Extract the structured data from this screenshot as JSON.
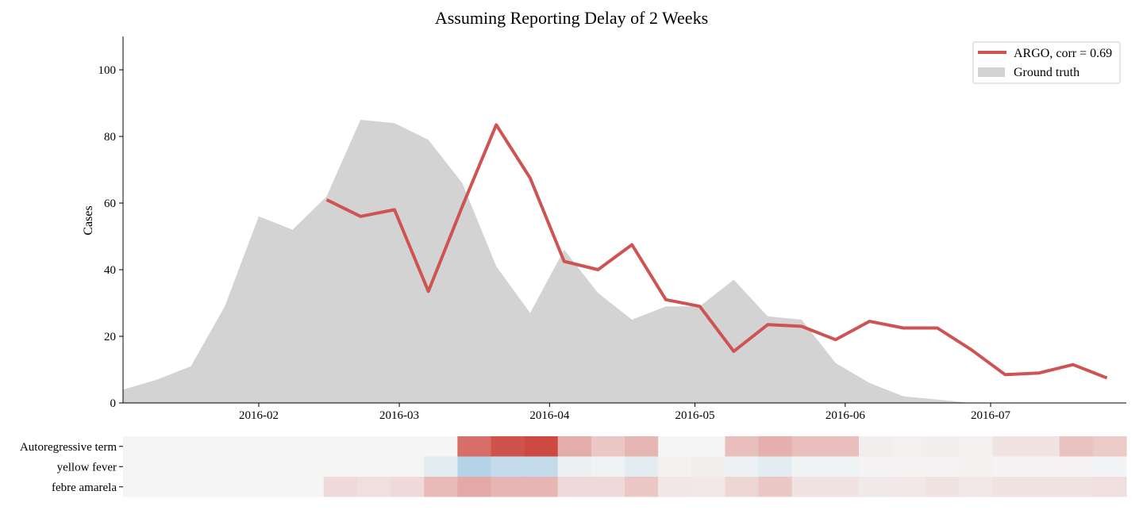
{
  "chart_data": [
    {
      "type": "line+area",
      "title": "Assuming Reporting Delay of 2 Weeks",
      "xlabel": "",
      "ylabel": "Cases",
      "ylim": [
        0,
        110
      ],
      "y_ticks": [
        0,
        20,
        40,
        60,
        80,
        100
      ],
      "x_range": [
        "2016-01-04",
        "2016-07-29"
      ],
      "x_ticks": [
        "2016-02",
        "2016-03",
        "2016-04",
        "2016-05",
        "2016-06",
        "2016-07"
      ],
      "grid": false,
      "legend_position": "top-right",
      "legend": [
        "ARGO, corr = 0.69",
        "Ground truth"
      ],
      "colors": {
        "argo": "#cd5452",
        "ground_truth": "#d3d3d3"
      },
      "series": [
        {
          "name": "Ground truth",
          "kind": "area",
          "x": [
            "2016-01-04",
            "2016-01-11",
            "2016-01-18",
            "2016-01-25",
            "2016-02-01",
            "2016-02-08",
            "2016-02-15",
            "2016-02-22",
            "2016-02-29",
            "2016-03-07",
            "2016-03-14",
            "2016-03-21",
            "2016-03-28",
            "2016-04-04",
            "2016-04-11",
            "2016-04-18",
            "2016-04-25",
            "2016-05-02",
            "2016-05-09",
            "2016-05-16",
            "2016-05-23",
            "2016-05-30",
            "2016-06-06",
            "2016-06-13",
            "2016-06-20",
            "2016-06-27",
            "2016-07-04",
            "2016-07-11",
            "2016-07-18",
            "2016-07-25",
            "2016-07-29"
          ],
          "values": [
            4,
            7,
            11,
            29,
            56,
            52,
            62,
            85,
            84,
            79,
            66,
            41,
            27,
            46,
            33,
            25,
            29,
            29,
            37,
            26,
            25,
            12,
            6,
            2,
            1,
            0,
            0,
            0,
            0,
            0,
            0
          ]
        },
        {
          "name": "ARGO, corr = 0.69",
          "kind": "line",
          "x": [
            "2016-02-15",
            "2016-02-22",
            "2016-02-29",
            "2016-03-07",
            "2016-03-14",
            "2016-03-21",
            "2016-03-28",
            "2016-04-04",
            "2016-04-11",
            "2016-04-18",
            "2016-04-25",
            "2016-05-02",
            "2016-05-09",
            "2016-05-16",
            "2016-05-23",
            "2016-05-30",
            "2016-06-06",
            "2016-06-13",
            "2016-06-20",
            "2016-06-27",
            "2016-07-04",
            "2016-07-11",
            "2016-07-18",
            "2016-07-25"
          ],
          "values": [
            61,
            56,
            58,
            33.5,
            59,
            83.5,
            67.5,
            42.5,
            40,
            47.5,
            31,
            29,
            15.5,
            23.5,
            23,
            19,
            24.5,
            22.5,
            22.5,
            16,
            8.5,
            9,
            11.5,
            7.5
          ]
        }
      ]
    },
    {
      "type": "heatmap",
      "rows": [
        "Autoregressive term",
        "yellow fever",
        "febre amarela"
      ],
      "columns": 30,
      "color_scale": "diverging red-blue, 0 = light gray",
      "values": [
        [
          0,
          0,
          0,
          0,
          0,
          0,
          0,
          0,
          0,
          0,
          0.75,
          0.9,
          0.95,
          0.4,
          0.25,
          0.35,
          0,
          0,
          0.3,
          0.38,
          0.3,
          0.3,
          0.04,
          0.03,
          0.04,
          0.03,
          0.1,
          0.1,
          0.28,
          0.24
        ],
        [
          0,
          0,
          0,
          0,
          0,
          0,
          0,
          0,
          0,
          -0.08,
          -0.28,
          -0.22,
          -0.22,
          -0.04,
          -0.02,
          -0.08,
          0.02,
          0.04,
          -0.03,
          -0.08,
          -0.02,
          -0.02,
          0.01,
          0.01,
          0.01,
          0.02,
          0.01,
          0.01,
          0.01,
          -0.01
        ],
        [
          0,
          0,
          0,
          0,
          0,
          0,
          0.15,
          0.12,
          0.15,
          0.32,
          0.42,
          0.35,
          0.35,
          0.15,
          0.15,
          0.25,
          0.08,
          0.07,
          0.17,
          0.25,
          0.1,
          0.1,
          0.06,
          0.07,
          0.1,
          0.07,
          0.1,
          0.1,
          0.1,
          0.12
        ]
      ]
    }
  ]
}
